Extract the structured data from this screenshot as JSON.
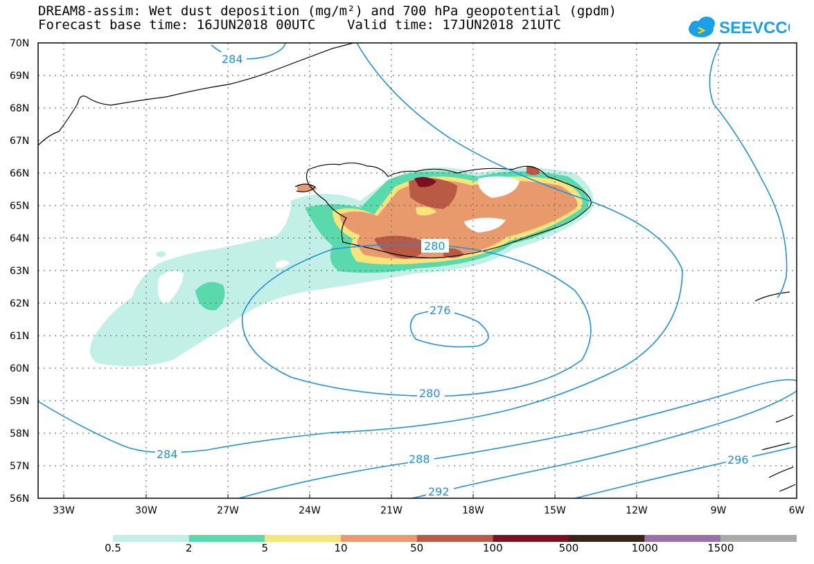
{
  "title": {
    "line1": "DREAM8-assim: Wet dust deposition (mg/m²) and 700 hPa geopotential (gpdm)",
    "line2": "Forecast base time: 16JUN2018 00UTC    Valid time: 17JUN2018 21UTC"
  },
  "logo": {
    "text": "SEEVCCC",
    "icon": "cloud-icon",
    "color": "#1aa0e8"
  },
  "axes": {
    "lat_labels": [
      "70N",
      "69N",
      "68N",
      "67N",
      "66N",
      "65N",
      "64N",
      "63N",
      "62N",
      "61N",
      "60N",
      "59N",
      "58N",
      "57N",
      "56N"
    ],
    "lon_labels": [
      "33W",
      "30W",
      "27W",
      "24W",
      "21W",
      "18W",
      "15W",
      "12W",
      "9W",
      "6W"
    ]
  },
  "contours": {
    "color": "#1e90e0",
    "labels": [
      "284",
      "280",
      "276",
      "280",
      "284",
      "288",
      "292",
      "296"
    ]
  },
  "legend": {
    "labels": [
      "0.5",
      "2",
      "5",
      "10",
      "50",
      "100",
      "500",
      "1000",
      "1500"
    ],
    "colors": [
      "#c2f0e6",
      "#5ad9ad",
      "#f7e47a",
      "#e89a6c",
      "#b85a44",
      "#7a1020",
      "#3a2418",
      "#9a70a8",
      "#a9a9a9"
    ]
  }
}
